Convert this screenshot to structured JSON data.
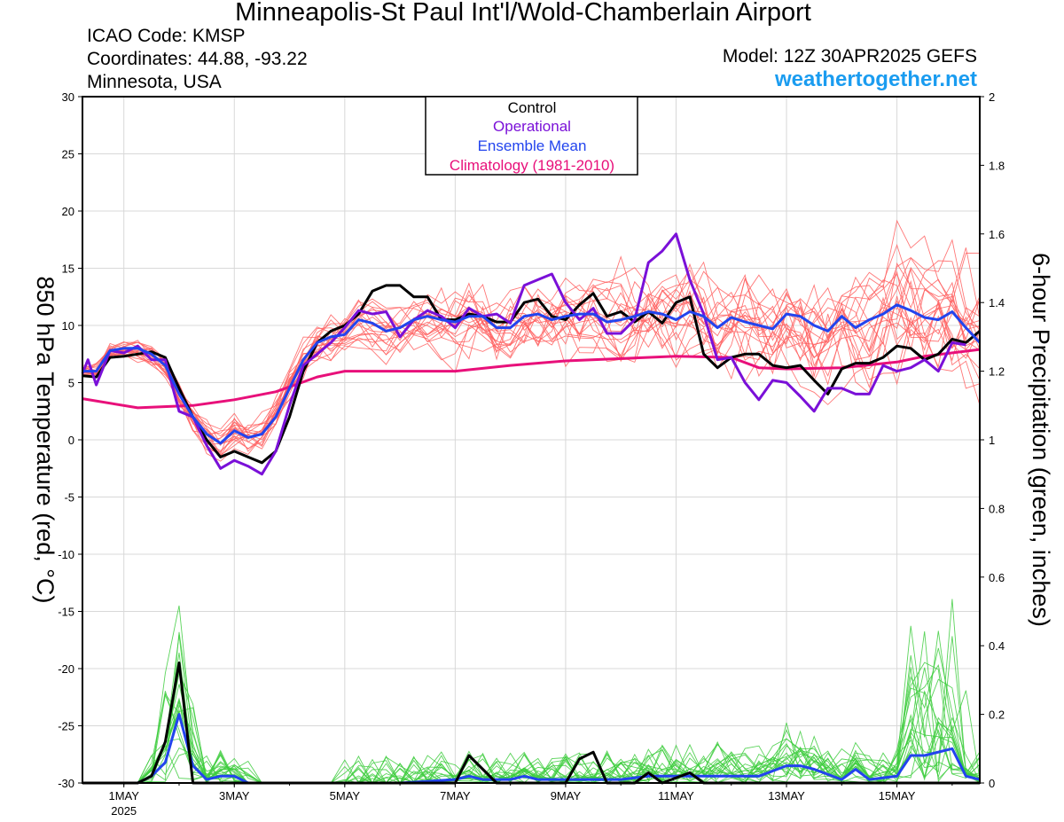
{
  "header": {
    "title": "Minneapolis-St Paul Int'l/Wold-Chamberlain Airport",
    "icao": "ICAO Code: KMSP",
    "coordinates": "Coordinates: 44.88, -93.22",
    "region": "Minnesota, USA",
    "model": "Model: 12Z 30APR2025 GEFS",
    "brand": "weathertogether.net",
    "brand_color": "#1a9cf0"
  },
  "legend": {
    "items": [
      {
        "label": "Control",
        "color": "#000000"
      },
      {
        "label": "Operational",
        "color": "#7a10d8"
      },
      {
        "label": "Ensemble Mean",
        "color": "#2244ee"
      },
      {
        "label": "Climatology (1981-2010)",
        "color": "#e8107a"
      }
    ]
  },
  "chart_data": {
    "type": "line",
    "ylabel": "850 hPa Temperature (red, °C)",
    "y2label": "6-hour Precipitation (green, inches)",
    "ylim": [
      -30,
      30
    ],
    "y2lim": [
      0,
      2
    ],
    "yticks": [
      "30",
      "25",
      "20",
      "15",
      "10",
      "5",
      "0",
      "-5",
      "-10",
      "-15",
      "-20",
      "-25",
      "-30"
    ],
    "y2ticks": [
      "2",
      "1.8",
      "1.6",
      "1.4",
      "1.2",
      "1",
      "0.8",
      "0.6",
      "0.4",
      "0.2",
      "0"
    ],
    "x_range_days": [
      0.25,
      16.25
    ],
    "xticks": [
      {
        "label": "1MAY",
        "sub": "2025",
        "day": 1
      },
      {
        "label": "3MAY",
        "sub": "",
        "day": 3
      },
      {
        "label": "5MAY",
        "sub": "",
        "day": 5
      },
      {
        "label": "7MAY",
        "sub": "",
        "day": 7
      },
      {
        "label": "9MAY",
        "sub": "",
        "day": 9
      },
      {
        "label": "11MAY",
        "sub": "",
        "day": 11
      },
      {
        "label": "13MAY",
        "sub": "",
        "day": 13
      },
      {
        "label": "15MAY",
        "sub": "",
        "day": 15
      }
    ],
    "grid": true,
    "series": [
      {
        "name": "Control",
        "axis": "temp",
        "color": "#000000",
        "points": [
          [
            0.25,
            5.6
          ],
          [
            0.5,
            5.5
          ],
          [
            0.75,
            7.2
          ],
          [
            1.0,
            7.3
          ],
          [
            1.25,
            7.5
          ],
          [
            1.5,
            7.7
          ],
          [
            1.75,
            7.2
          ],
          [
            2.0,
            4.5
          ],
          [
            2.25,
            2.0
          ],
          [
            2.5,
            0
          ],
          [
            2.75,
            -1.5
          ],
          [
            3.0,
            -1.0
          ],
          [
            3.25,
            -1.5
          ],
          [
            3.5,
            -2.0
          ],
          [
            3.75,
            -1.0
          ],
          [
            4.0,
            2.0
          ],
          [
            4.25,
            6.0
          ],
          [
            4.5,
            8.5
          ],
          [
            4.75,
            9.5
          ],
          [
            5.0,
            10.0
          ],
          [
            5.25,
            11.0
          ],
          [
            5.5,
            13.0
          ],
          [
            5.75,
            13.5
          ],
          [
            6.0,
            13.5
          ],
          [
            6.25,
            12.5
          ],
          [
            6.5,
            12.5
          ],
          [
            6.75,
            10.5
          ],
          [
            7.0,
            10.5
          ],
          [
            7.25,
            11.0
          ],
          [
            7.5,
            10.8
          ],
          [
            7.75,
            10.3
          ],
          [
            8.0,
            10.3
          ],
          [
            8.25,
            12.0
          ],
          [
            8.5,
            12.3
          ],
          [
            8.75,
            10.8
          ],
          [
            9.0,
            10.5
          ],
          [
            9.25,
            11.8
          ],
          [
            9.5,
            12.8
          ],
          [
            9.75,
            10.8
          ],
          [
            10.0,
            11.2
          ],
          [
            10.25,
            10.3
          ],
          [
            10.5,
            11.2
          ],
          [
            10.75,
            10.2
          ],
          [
            11.0,
            12.0
          ],
          [
            11.25,
            12.5
          ],
          [
            11.5,
            7.5
          ],
          [
            11.75,
            6.3
          ],
          [
            12.0,
            7.2
          ],
          [
            12.25,
            7.5
          ],
          [
            12.5,
            7.5
          ],
          [
            12.75,
            6.5
          ],
          [
            13.0,
            6.3
          ],
          [
            13.25,
            6.5
          ],
          [
            13.5,
            5.2
          ],
          [
            13.75,
            4.0
          ],
          [
            14.0,
            6.2
          ],
          [
            14.25,
            6.7
          ],
          [
            14.5,
            6.7
          ],
          [
            14.75,
            7.2
          ],
          [
            15.0,
            8.2
          ],
          [
            15.25,
            8.0
          ],
          [
            15.5,
            7.0
          ],
          [
            15.75,
            7.5
          ],
          [
            16.0,
            8.8
          ],
          [
            16.25,
            8.5
          ],
          [
            16.5,
            9.5
          ]
        ]
      },
      {
        "name": "Operational",
        "axis": "temp",
        "color": "#7a10d8",
        "points": [
          [
            0.25,
            5.8
          ],
          [
            0.35,
            7.0
          ],
          [
            0.5,
            4.8
          ],
          [
            0.75,
            7.8
          ],
          [
            1.0,
            7.6
          ],
          [
            1.25,
            8.2
          ],
          [
            1.5,
            7.0
          ],
          [
            1.75,
            7.0
          ],
          [
            2.0,
            2.5
          ],
          [
            2.25,
            2.0
          ],
          [
            2.5,
            -0.5
          ],
          [
            2.75,
            -2.5
          ],
          [
            3.0,
            -1.8
          ],
          [
            3.25,
            -2.3
          ],
          [
            3.5,
            -3.0
          ],
          [
            3.75,
            -1.0
          ],
          [
            4.0,
            3.0
          ],
          [
            4.25,
            6.5
          ],
          [
            4.5,
            7.5
          ],
          [
            4.75,
            8.5
          ],
          [
            5.0,
            9.8
          ],
          [
            5.25,
            11.3
          ],
          [
            5.5,
            11.0
          ],
          [
            5.75,
            11.2
          ],
          [
            6.0,
            9.0
          ],
          [
            6.25,
            10.5
          ],
          [
            6.5,
            11.3
          ],
          [
            6.75,
            10.8
          ],
          [
            7.0,
            9.8
          ],
          [
            7.25,
            11.5
          ],
          [
            7.5,
            10.8
          ],
          [
            7.75,
            11.0
          ],
          [
            8.0,
            10.2
          ],
          [
            8.25,
            13.5
          ],
          [
            8.5,
            14.0
          ],
          [
            8.75,
            14.5
          ],
          [
            9.0,
            12.0
          ],
          [
            9.25,
            10.5
          ],
          [
            9.5,
            11.5
          ],
          [
            9.75,
            9.3
          ],
          [
            10.0,
            9.3
          ],
          [
            10.25,
            10.5
          ],
          [
            10.5,
            15.5
          ],
          [
            10.75,
            16.5
          ],
          [
            11.0,
            18.0
          ],
          [
            11.25,
            14.0
          ],
          [
            11.5,
            11.0
          ],
          [
            11.75,
            7.0
          ],
          [
            12.0,
            7.2
          ],
          [
            12.25,
            5.0
          ],
          [
            12.5,
            3.5
          ],
          [
            12.75,
            5.2
          ],
          [
            13.0,
            5.0
          ],
          [
            13.25,
            3.8
          ],
          [
            13.5,
            2.5
          ],
          [
            13.75,
            4.5
          ],
          [
            14.0,
            4.5
          ],
          [
            14.25,
            4.0
          ],
          [
            14.5,
            4.0
          ],
          [
            14.75,
            6.5
          ],
          [
            15.0,
            6.0
          ],
          [
            15.25,
            6.3
          ],
          [
            15.5,
            7.0
          ],
          [
            15.75,
            6.0
          ],
          [
            16.0,
            8.5
          ],
          [
            16.25,
            8.3
          ]
        ]
      },
      {
        "name": "Ensemble Mean",
        "axis": "temp",
        "color": "#2244ee",
        "points": [
          [
            0.25,
            6.0
          ],
          [
            0.5,
            6.0
          ],
          [
            0.75,
            7.8
          ],
          [
            1.0,
            8.0
          ],
          [
            1.25,
            8.0
          ],
          [
            1.5,
            7.5
          ],
          [
            1.75,
            6.5
          ],
          [
            2.0,
            4.0
          ],
          [
            2.25,
            2.0
          ],
          [
            2.5,
            0.5
          ],
          [
            2.75,
            -0.3
          ],
          [
            3.0,
            0.8
          ],
          [
            3.25,
            0.2
          ],
          [
            3.5,
            0.5
          ],
          [
            3.75,
            2.0
          ],
          [
            4.0,
            4.5
          ],
          [
            4.25,
            7.0
          ],
          [
            4.5,
            8.5
          ],
          [
            4.75,
            9.0
          ],
          [
            5.0,
            9.2
          ],
          [
            5.25,
            10.5
          ],
          [
            5.5,
            10.2
          ],
          [
            5.75,
            9.5
          ],
          [
            6.0,
            9.8
          ],
          [
            6.25,
            10.5
          ],
          [
            6.5,
            10.8
          ],
          [
            6.75,
            10.5
          ],
          [
            7.0,
            10.3
          ],
          [
            7.25,
            10.8
          ],
          [
            7.5,
            10.8
          ],
          [
            7.75,
            9.8
          ],
          [
            8.0,
            9.8
          ],
          [
            8.25,
            10.8
          ],
          [
            8.5,
            11.0
          ],
          [
            8.75,
            10.5
          ],
          [
            9.0,
            10.8
          ],
          [
            9.25,
            11.0
          ],
          [
            9.5,
            11.0
          ],
          [
            9.75,
            10.3
          ],
          [
            10.0,
            10.5
          ],
          [
            10.25,
            10.8
          ],
          [
            10.5,
            11.2
          ],
          [
            10.75,
            11.0
          ],
          [
            11.0,
            10.5
          ],
          [
            11.25,
            11.2
          ],
          [
            11.5,
            10.8
          ],
          [
            11.75,
            9.8
          ],
          [
            12.0,
            10.7
          ],
          [
            12.25,
            10.3
          ],
          [
            12.5,
            10.0
          ],
          [
            12.75,
            9.7
          ],
          [
            13.0,
            11.0
          ],
          [
            13.25,
            10.8
          ],
          [
            13.5,
            10.0
          ],
          [
            13.75,
            9.5
          ],
          [
            14.0,
            10.8
          ],
          [
            14.25,
            9.8
          ],
          [
            14.5,
            10.5
          ],
          [
            14.75,
            11.0
          ],
          [
            15.0,
            11.8
          ],
          [
            15.25,
            11.3
          ],
          [
            15.5,
            10.7
          ],
          [
            15.75,
            10.5
          ],
          [
            16.0,
            11.2
          ],
          [
            16.25,
            9.8
          ],
          [
            16.5,
            8.5
          ]
        ]
      },
      {
        "name": "Climatology (1981-2010)",
        "axis": "temp",
        "color": "#e8107a",
        "points": [
          [
            0.25,
            3.6
          ],
          [
            1.25,
            2.8
          ],
          [
            2.25,
            3.0
          ],
          [
            3.0,
            3.5
          ],
          [
            3.75,
            4.2
          ],
          [
            4.5,
            5.5
          ],
          [
            5.0,
            6.0
          ],
          [
            6.0,
            6.0
          ],
          [
            7.0,
            6.0
          ],
          [
            8.0,
            6.5
          ],
          [
            9.0,
            6.9
          ],
          [
            10.0,
            7.1
          ],
          [
            11.0,
            7.3
          ],
          [
            12.0,
            7.2
          ],
          [
            12.5,
            6.3
          ],
          [
            13.0,
            6.2
          ],
          [
            14.0,
            6.3
          ],
          [
            15.0,
            6.8
          ],
          [
            15.5,
            7.3
          ],
          [
            16.5,
            7.9
          ]
        ]
      },
      {
        "name": "Control",
        "axis": "precip",
        "color": "#000000",
        "points": [
          [
            0.25,
            0
          ],
          [
            1.25,
            0
          ],
          [
            1.5,
            0.02
          ],
          [
            1.75,
            0.12
          ],
          [
            2.0,
            0.35
          ],
          [
            2.25,
            0
          ],
          [
            3.0,
            0
          ],
          [
            6.5,
            0
          ],
          [
            7.0,
            0
          ],
          [
            7.25,
            0.08
          ],
          [
            7.5,
            0.04
          ],
          [
            7.75,
            0
          ],
          [
            9.0,
            0
          ],
          [
            9.25,
            0.07
          ],
          [
            9.5,
            0.09
          ],
          [
            9.75,
            0
          ],
          [
            10.25,
            0
          ],
          [
            10.5,
            0.03
          ],
          [
            10.75,
            0
          ],
          [
            11.25,
            0.03
          ],
          [
            11.5,
            0
          ],
          [
            16.5,
            0
          ]
        ]
      },
      {
        "name": "Ensemble Mean",
        "axis": "precip",
        "color": "#2244ee",
        "points": [
          [
            0.25,
            0
          ],
          [
            1.25,
            0
          ],
          [
            1.5,
            0.02
          ],
          [
            1.75,
            0.06
          ],
          [
            2.0,
            0.2
          ],
          [
            2.25,
            0.05
          ],
          [
            2.5,
            0.01
          ],
          [
            2.75,
            0.02
          ],
          [
            3.0,
            0.02
          ],
          [
            3.25,
            0
          ],
          [
            4.0,
            0
          ],
          [
            6.0,
            0
          ],
          [
            6.5,
            0.005
          ],
          [
            7.0,
            0.01
          ],
          [
            7.25,
            0.02
          ],
          [
            7.5,
            0.01
          ],
          [
            8.0,
            0.01
          ],
          [
            8.25,
            0.02
          ],
          [
            8.5,
            0.01
          ],
          [
            9.0,
            0.01
          ],
          [
            9.5,
            0.01
          ],
          [
            10.0,
            0.01
          ],
          [
            10.5,
            0.02
          ],
          [
            11.0,
            0.02
          ],
          [
            11.5,
            0.02
          ],
          [
            12.0,
            0.02
          ],
          [
            12.5,
            0.02
          ],
          [
            13.0,
            0.05
          ],
          [
            13.25,
            0.05
          ],
          [
            13.5,
            0.04
          ],
          [
            14.0,
            0.01
          ],
          [
            14.25,
            0.04
          ],
          [
            14.5,
            0.01
          ],
          [
            15.0,
            0.02
          ],
          [
            15.25,
            0.08
          ],
          [
            15.5,
            0.08
          ],
          [
            16.0,
            0.1
          ],
          [
            16.25,
            0.02
          ],
          [
            16.5,
            0.01
          ]
        ]
      }
    ]
  },
  "visual": {
    "ensemble_temp_color": "#ff6060",
    "ensemble_precip_color": "#3dcc3d"
  }
}
